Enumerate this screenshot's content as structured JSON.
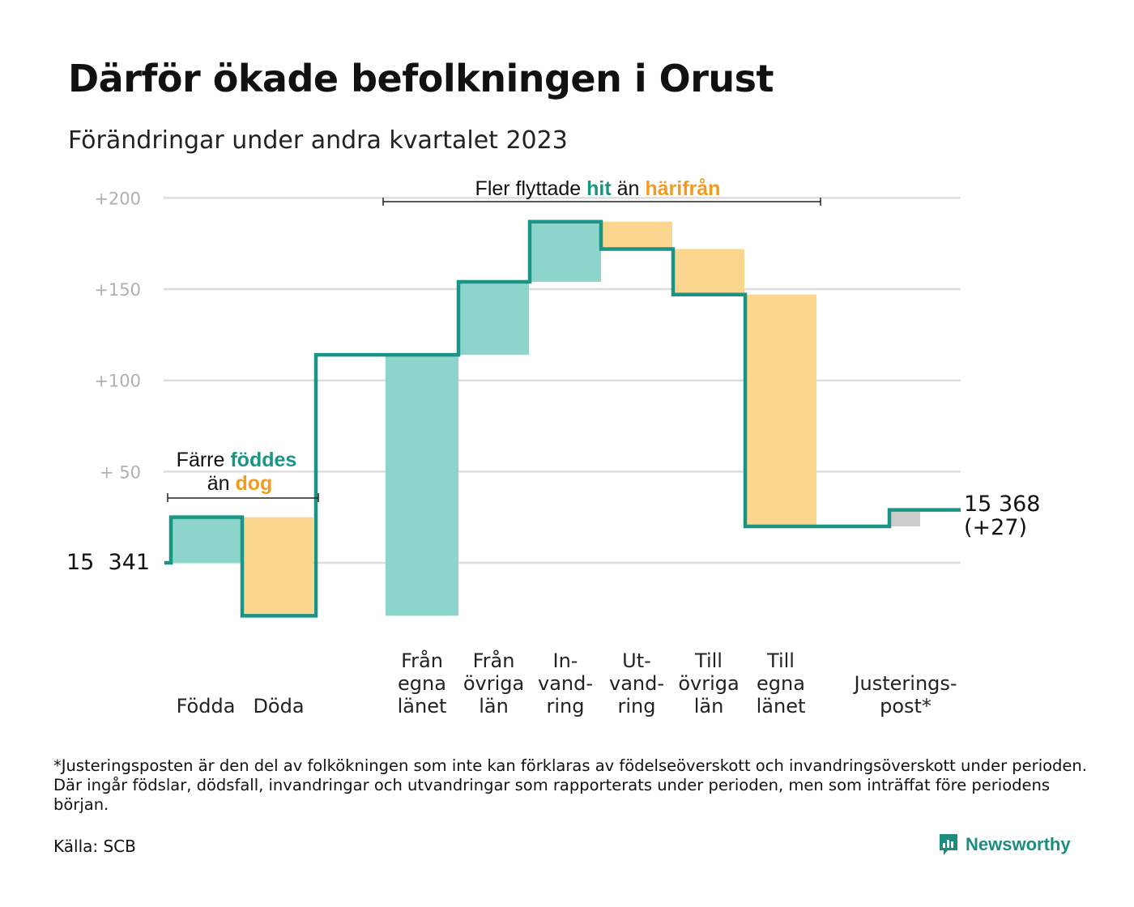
{
  "title": "Därför ökade befolkningen i Orust",
  "subtitle": "Förändringar under andra kvartalet 2023",
  "colors": {
    "increase": "#8dd5cb",
    "decrease": "#fad68f",
    "adjustment": "#cccccc",
    "line": "#1a9484",
    "hit": "#1a9484",
    "harifran": "#f29b22",
    "grid": "#dddddd",
    "ticks": "#b0b0b0"
  },
  "chart_data": {
    "type": "waterfall",
    "start_value": 15341,
    "end_value": 15368,
    "start_label": [
      "15  341"
    ],
    "end_label": [
      "15 368",
      "(+27)"
    ],
    "y_ticks": [
      {
        "value": 50,
        "label": "+  50"
      },
      {
        "value": 100,
        "label": "+100"
      },
      {
        "value": 150,
        "label": "+150"
      },
      {
        "value": 200,
        "label": "+200"
      }
    ],
    "y_range": [
      -45,
      200
    ],
    "grid": true,
    "steps": [
      {
        "label": [
          "Födda"
        ],
        "change": 25,
        "kind": "increase"
      },
      {
        "label": [
          "Döda"
        ],
        "change": -54,
        "kind": "decrease"
      },
      {
        "label": [
          "Från",
          "egna",
          "länet"
        ],
        "change": 143,
        "kind": "increase"
      },
      {
        "label": [
          "Från",
          "övriga",
          "län"
        ],
        "change": 40,
        "kind": "increase"
      },
      {
        "label": [
          "In-",
          "vand-",
          "ring"
        ],
        "change": 33,
        "kind": "increase"
      },
      {
        "label": [
          "Ut-",
          "vand-",
          "ring"
        ],
        "change": -15,
        "kind": "decrease"
      },
      {
        "label": [
          "Till",
          "övriga",
          "län"
        ],
        "change": -25,
        "kind": "decrease"
      },
      {
        "label": [
          "Till",
          "egna",
          "länet"
        ],
        "change": -127,
        "kind": "decrease"
      },
      {
        "label": [
          "Justerings-",
          "post*"
        ],
        "change": 9,
        "kind": "adjustment"
      }
    ],
    "annotations": [
      {
        "id": "births",
        "line1": [
          {
            "text": "Färre ",
            "style": "plain"
          },
          {
            "text": "föddes",
            "style": "hit"
          }
        ],
        "line2": [
          {
            "text": "än ",
            "style": "plain"
          },
          {
            "text": "dog",
            "style": "harifran"
          }
        ]
      },
      {
        "id": "migration",
        "line1": [
          {
            "text": "Fler flyttade ",
            "style": "plain"
          },
          {
            "text": "hit",
            "style": "hit"
          },
          {
            "text": " än ",
            "style": "plain"
          },
          {
            "text": "härifrån",
            "style": "harifran"
          }
        ]
      }
    ]
  },
  "footnote": "*Justeringsposten är den del av folkökningen som inte kan förklaras av födelseöverskott och invandringsöverskott under perioden. Där ingår födslar, dödsfall, invandringar och utvandringar som rapporterats under perioden, men som inträffat före periodens början.",
  "source": "Källa: SCB",
  "brand": {
    "name": "Newsworthy",
    "icon": "newsworthy-logo-icon"
  }
}
